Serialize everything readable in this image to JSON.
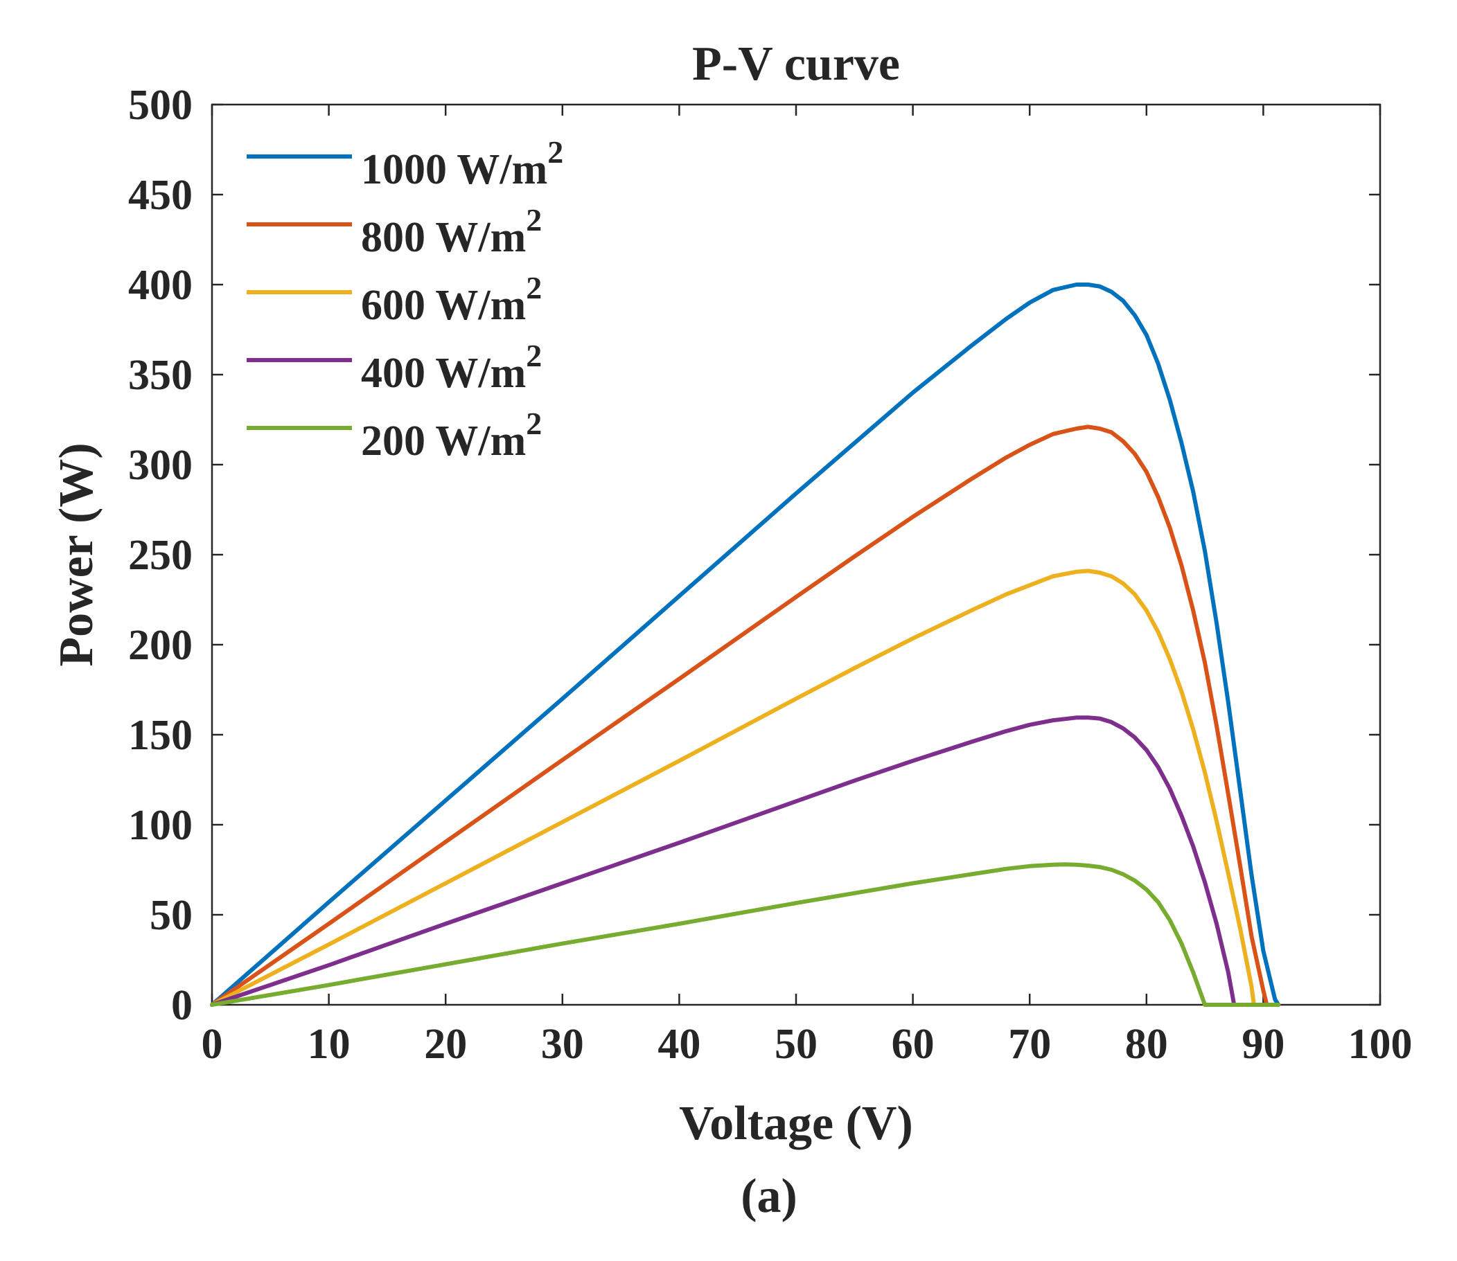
{
  "chart_data": {
    "type": "line",
    "title": "P-V curve",
    "xlabel": "Voltage (V)",
    "ylabel": "Power (W)",
    "xlim": [
      0,
      100
    ],
    "ylim": [
      0,
      500
    ],
    "xticks": [
      0,
      10,
      20,
      30,
      40,
      50,
      60,
      70,
      80,
      90,
      100
    ],
    "yticks": [
      0,
      50,
      100,
      150,
      200,
      250,
      300,
      350,
      400,
      450,
      500
    ],
    "grid": false,
    "legend_position": "top-left",
    "caption": "(a)",
    "series": [
      {
        "name": "1000 W/m",
        "superscript": "2",
        "color": "#0072BD",
        "x": [
          0,
          10,
          20,
          30,
          40,
          50,
          55,
          60,
          65,
          68,
          70,
          72,
          74,
          75,
          76,
          77,
          78,
          79,
          80,
          81,
          82,
          83,
          84,
          85,
          86,
          87,
          88,
          89,
          90,
          91,
          91.3
        ],
        "y": [
          0,
          57,
          113.5,
          170,
          227,
          284,
          312,
          340,
          366,
          381,
          390,
          397,
          400,
          400,
          399,
          396,
          391,
          383,
          372,
          356,
          336,
          312,
          285,
          252,
          212,
          168,
          120,
          72,
          30,
          3,
          0
        ]
      },
      {
        "name": "800 W/m",
        "superscript": "2",
        "color": "#D95319",
        "x": [
          0,
          10,
          20,
          30,
          40,
          50,
          55,
          60,
          65,
          68,
          70,
          72,
          74,
          75,
          76,
          77,
          78,
          79,
          80,
          81,
          82,
          83,
          84,
          85,
          86,
          87,
          88,
          89,
          90,
          90.3
        ],
        "y": [
          0,
          45,
          90.5,
          136,
          181,
          226.5,
          249,
          271,
          292,
          304,
          311,
          317,
          320,
          321,
          320,
          318,
          313,
          306,
          296,
          282,
          265,
          244,
          219,
          190,
          155,
          117,
          78,
          38,
          8,
          0
        ]
      },
      {
        "name": "600 W/m",
        "superscript": "2",
        "color": "#EDB120",
        "x": [
          0,
          10,
          20,
          30,
          40,
          50,
          55,
          60,
          65,
          68,
          70,
          72,
          74,
          75,
          76,
          77,
          78,
          79,
          80,
          81,
          82,
          83,
          84,
          85,
          86,
          87,
          88,
          89,
          89.2
        ],
        "y": [
          0,
          33.5,
          67.5,
          101.5,
          135.5,
          170,
          187,
          203.5,
          219,
          228,
          233,
          238,
          240.5,
          241,
          240,
          238,
          234,
          228,
          219,
          207,
          192,
          174,
          153,
          129,
          102,
          73,
          43,
          10,
          0
        ]
      },
      {
        "name": "400 W/m",
        "superscript": "2",
        "color": "#7E2F8E",
        "x": [
          0,
          10,
          20,
          30,
          40,
          50,
          55,
          60,
          65,
          68,
          70,
          72,
          74,
          75,
          76,
          77,
          78,
          79,
          80,
          81,
          82,
          83,
          84,
          85,
          86,
          87,
          87.5
        ],
        "y": [
          0,
          22,
          45,
          67.5,
          90,
          113,
          124.5,
          135.5,
          146,
          152,
          155.5,
          158,
          159.5,
          159.5,
          159,
          157,
          153.5,
          148.5,
          141.5,
          132,
          120,
          105,
          88,
          68,
          45,
          18,
          0
        ]
      },
      {
        "name": "200 W/m",
        "superscript": "2",
        "color": "#77AC30",
        "x": [
          0,
          10,
          20,
          30,
          40,
          50,
          55,
          60,
          65,
          68,
          70,
          72,
          73,
          74,
          75,
          76,
          77,
          78,
          79,
          80,
          81,
          82,
          83,
          84,
          85,
          86,
          87,
          88,
          89,
          90,
          91,
          91.3
        ],
        "y": [
          0,
          11,
          22.5,
          34,
          45,
          56.5,
          62,
          67.5,
          72.5,
          75.5,
          77,
          77.8,
          78,
          77.8,
          77.3,
          76.5,
          75,
          72.5,
          69,
          64,
          57,
          47,
          34,
          18,
          0,
          0,
          0,
          0,
          0,
          0,
          0,
          0
        ]
      }
    ]
  }
}
